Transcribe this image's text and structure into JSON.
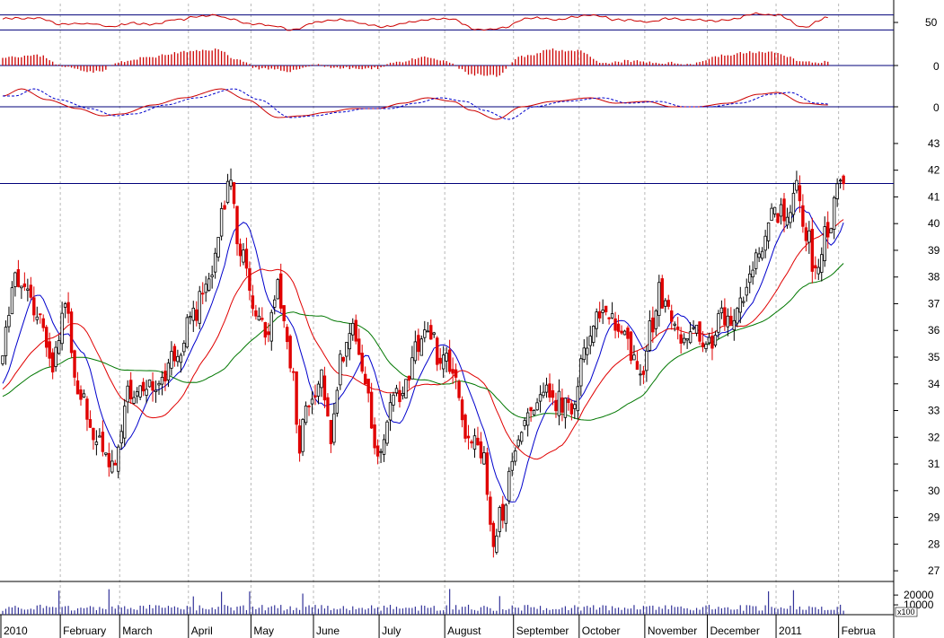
{
  "colors": {
    "background": "#ffffff",
    "up_candle": "#000000",
    "down_candle": "#e00000",
    "ma_short": "#0000cc",
    "ma_mid": "#e00000",
    "ma_long": "#007700",
    "oscillator": "#cc0000",
    "signal": "#0000cc",
    "level_line": "#00007a",
    "grid": "#b8b8b8"
  },
  "chart_data": [
    {
      "type": "line",
      "panel": "rsi",
      "tick_labels": [
        "50"
      ],
      "ylim": [
        0,
        100
      ],
      "levels": [
        30,
        70
      ],
      "x_range": [
        0,
        264
      ],
      "smoothing": 4,
      "knots": [
        [
          0,
          60
        ],
        [
          10,
          62
        ],
        [
          20,
          45
        ],
        [
          28,
          48
        ],
        [
          34,
          38
        ],
        [
          40,
          47
        ],
        [
          48,
          45
        ],
        [
          56,
          58
        ],
        [
          62,
          64
        ],
        [
          68,
          70
        ],
        [
          72,
          60
        ],
        [
          80,
          46
        ],
        [
          88,
          40
        ],
        [
          92,
          28
        ],
        [
          100,
          50
        ],
        [
          108,
          58
        ],
        [
          116,
          46
        ],
        [
          122,
          38
        ],
        [
          130,
          50
        ],
        [
          138,
          60
        ],
        [
          144,
          58
        ],
        [
          152,
          30
        ],
        [
          160,
          35
        ],
        [
          168,
          62
        ],
        [
          178,
          58
        ],
        [
          188,
          70
        ],
        [
          196,
          58
        ],
        [
          206,
          52
        ],
        [
          214,
          60
        ],
        [
          222,
          56
        ],
        [
          232,
          55
        ],
        [
          240,
          72
        ],
        [
          248,
          70
        ],
        [
          256,
          38
        ],
        [
          264,
          62
        ]
      ]
    },
    {
      "type": "bar",
      "panel": "histogram",
      "tick_labels": [
        "0"
      ],
      "ylim": [
        -1,
        1
      ],
      "x_range": [
        0,
        264
      ],
      "smoothing": 5,
      "knots": [
        [
          0,
          0.5
        ],
        [
          12,
          0.55
        ],
        [
          20,
          -0.1
        ],
        [
          30,
          -0.35
        ],
        [
          38,
          0.2
        ],
        [
          48,
          0.5
        ],
        [
          58,
          0.75
        ],
        [
          68,
          0.9
        ],
        [
          76,
          0.3
        ],
        [
          82,
          -0.2
        ],
        [
          92,
          -0.3
        ],
        [
          100,
          0.05
        ],
        [
          108,
          -0.15
        ],
        [
          118,
          -0.2
        ],
        [
          126,
          0.2
        ],
        [
          136,
          0.45
        ],
        [
          142,
          0.2
        ],
        [
          150,
          -0.5
        ],
        [
          158,
          -0.6
        ],
        [
          166,
          0.5
        ],
        [
          176,
          0.9
        ],
        [
          184,
          0.8
        ],
        [
          192,
          0.1
        ],
        [
          200,
          0.25
        ],
        [
          210,
          0.15
        ],
        [
          220,
          0.1
        ],
        [
          230,
          0.55
        ],
        [
          240,
          0.75
        ],
        [
          248,
          0.7
        ],
        [
          256,
          0.2
        ],
        [
          264,
          0.2
        ]
      ]
    },
    {
      "type": "line",
      "panel": "macd",
      "tick_labels": [
        "0"
      ],
      "ylim": [
        -1,
        1
      ],
      "series": [
        {
          "color": "oscillator",
          "style": "solid",
          "lag": 0
        },
        {
          "color": "signal",
          "style": "dashed",
          "lag": 4
        }
      ],
      "x_range": [
        0,
        264
      ],
      "smoothing": 4,
      "knots": [
        [
          0,
          0.3
        ],
        [
          6,
          0.5
        ],
        [
          14,
          0.2
        ],
        [
          24,
          -0.05
        ],
        [
          32,
          -0.25
        ],
        [
          38,
          -0.2
        ],
        [
          48,
          0.05
        ],
        [
          58,
          0.25
        ],
        [
          70,
          0.5
        ],
        [
          78,
          0.2
        ],
        [
          88,
          -0.3
        ],
        [
          96,
          -0.25
        ],
        [
          104,
          -0.15
        ],
        [
          112,
          -0.05
        ],
        [
          120,
          -0.05
        ],
        [
          128,
          0.1
        ],
        [
          136,
          0.25
        ],
        [
          144,
          0.15
        ],
        [
          150,
          -0.1
        ],
        [
          158,
          -0.35
        ],
        [
          166,
          0.0
        ],
        [
          176,
          0.15
        ],
        [
          188,
          0.25
        ],
        [
          196,
          0.1
        ],
        [
          206,
          0.15
        ],
        [
          214,
          0.0
        ],
        [
          222,
          0.0
        ],
        [
          232,
          0.1
        ],
        [
          242,
          0.35
        ],
        [
          248,
          0.4
        ],
        [
          256,
          0.1
        ],
        [
          264,
          0.05
        ]
      ]
    },
    {
      "type": "candlestick",
      "panel": "price",
      "yticks": [
        27,
        28,
        29,
        30,
        31,
        32,
        33,
        34,
        35,
        36,
        37,
        38,
        39,
        40,
        41,
        42,
        43
      ],
      "ylim": [
        26.6,
        43.4
      ],
      "resistance": 41.5,
      "x_range": [
        0,
        264
      ],
      "months": [
        {
          "label": "2010",
          "index": 0
        },
        {
          "label": "February",
          "index": 19
        },
        {
          "label": "March",
          "index": 38
        },
        {
          "label": "April",
          "index": 60
        },
        {
          "label": "May",
          "index": 80
        },
        {
          "label": "June",
          "index": 100
        },
        {
          "label": "July",
          "index": 121
        },
        {
          "label": "August",
          "index": 142
        },
        {
          "label": "September",
          "index": 164
        },
        {
          "label": "October",
          "index": 185
        },
        {
          "label": "November",
          "index": 206
        },
        {
          "label": "December",
          "index": 226
        },
        {
          "label": "2011",
          "index": 248
        },
        {
          "label": "Februa",
          "index": 268
        }
      ],
      "close_knots": [
        [
          0,
          35.5
        ],
        [
          4,
          38.0
        ],
        [
          8,
          37.2
        ],
        [
          12,
          36.5
        ],
        [
          16,
          34.8
        ],
        [
          20,
          37.0
        ],
        [
          24,
          34.0
        ],
        [
          28,
          32.5
        ],
        [
          32,
          31.5
        ],
        [
          35,
          30.8
        ],
        [
          40,
          33.5
        ],
        [
          44,
          34.2
        ],
        [
          48,
          33.8
        ],
        [
          52,
          34.5
        ],
        [
          56,
          35.3
        ],
        [
          60,
          36.3
        ],
        [
          64,
          37.2
        ],
        [
          67,
          37.8
        ],
        [
          70,
          40.5
        ],
        [
          73,
          41.5
        ],
        [
          76,
          39.0
        ],
        [
          80,
          37.0
        ],
        [
          84,
          36.0
        ],
        [
          88,
          37.5
        ],
        [
          92,
          35.0
        ],
        [
          95,
          31.8
        ],
        [
          98,
          33.5
        ],
        [
          102,
          34.2
        ],
        [
          105,
          31.8
        ],
        [
          108,
          34.8
        ],
        [
          112,
          36.0
        ],
        [
          116,
          34.0
        ],
        [
          120,
          31.0
        ],
        [
          124,
          33.2
        ],
        [
          128,
          33.6
        ],
        [
          132,
          35.5
        ],
        [
          136,
          36.0
        ],
        [
          140,
          35.0
        ],
        [
          144,
          34.5
        ],
        [
          148,
          32.0
        ],
        [
          151,
          32.3
        ],
        [
          154,
          31.0
        ],
        [
          157,
          28.2
        ],
        [
          160,
          29.3
        ],
        [
          163,
          30.9
        ],
        [
          166,
          32.3
        ],
        [
          170,
          32.8
        ],
        [
          174,
          33.6
        ],
        [
          178,
          33.3
        ],
        [
          182,
          32.9
        ],
        [
          185,
          34.6
        ],
        [
          188,
          36.0
        ],
        [
          192,
          37.0
        ],
        [
          196,
          36.2
        ],
        [
          200,
          35.4
        ],
        [
          204,
          34.3
        ],
        [
          207,
          36.0
        ],
        [
          210,
          37.4
        ],
        [
          214,
          36.5
        ],
        [
          218,
          35.3
        ],
        [
          222,
          35.8
        ],
        [
          226,
          35.5
        ],
        [
          230,
          36.4
        ],
        [
          234,
          36.2
        ],
        [
          238,
          37.5
        ],
        [
          242,
          39.0
        ],
        [
          246,
          40.2
        ],
        [
          250,
          40.5
        ],
        [
          254,
          41.2
        ],
        [
          257,
          39.8
        ],
        [
          260,
          38.1
        ],
        [
          263,
          39.5
        ],
        [
          265,
          40.2
        ],
        [
          267,
          41.3
        ]
      ],
      "ma": [
        {
          "color": "ma_short",
          "period": 10
        },
        {
          "color": "ma_mid",
          "period": 25
        },
        {
          "color": "ma_long",
          "period": 50
        }
      ]
    },
    {
      "type": "bar",
      "panel": "volume",
      "tick_labels": [
        "20000",
        "10000"
      ],
      "tick_values": [
        20000,
        10000
      ],
      "unit_label": "x100",
      "ylim": [
        0,
        32000
      ],
      "base": 7000,
      "spike_indices": [
        18,
        34,
        61,
        70,
        79,
        96,
        143,
        159,
        245,
        253
      ]
    }
  ]
}
